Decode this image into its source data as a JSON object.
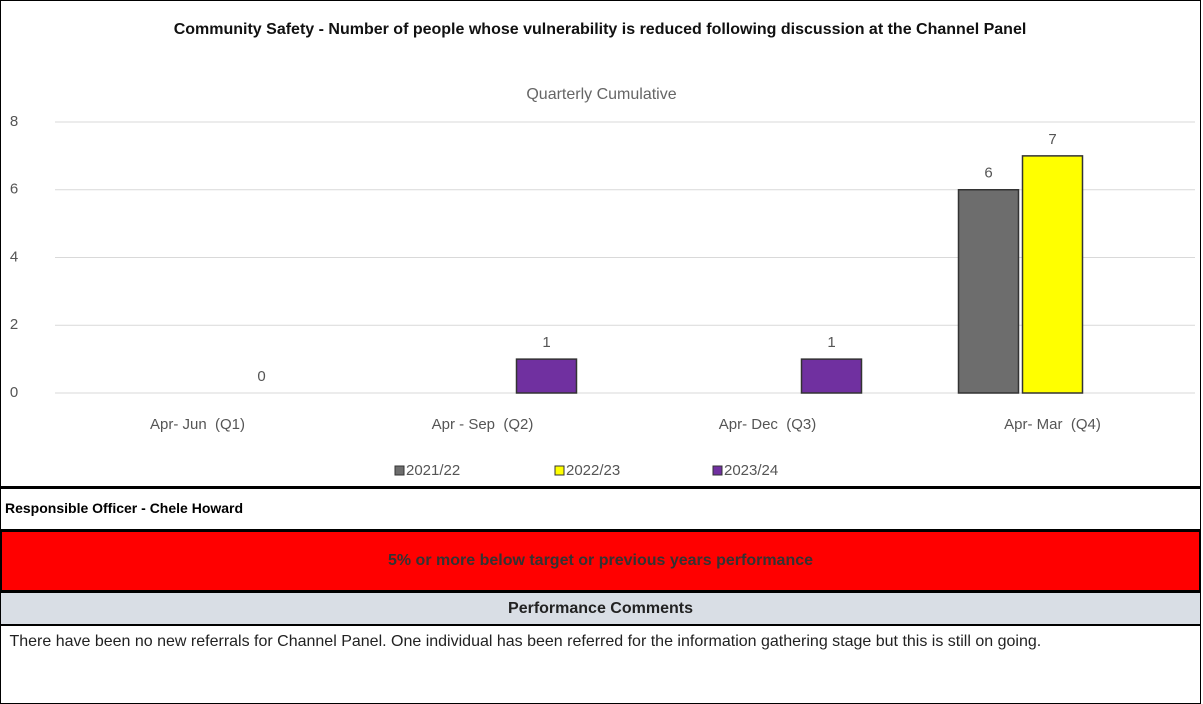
{
  "chart_data": {
    "type": "bar",
    "title": "Community Safety - Number of people whose vulnerability is reduced following discussion at the Channel Panel",
    "subtitle": "Quarterly Cumulative",
    "categories": [
      "Apr- Jun  (Q1)",
      "Apr - Sep  (Q2)",
      "Apr- Dec  (Q3)",
      "Apr- Mar  (Q4)"
    ],
    "series": [
      {
        "name": "2021/22",
        "color": "#6d6d6d",
        "values": [
          null,
          null,
          null,
          6
        ]
      },
      {
        "name": "2022/23",
        "color": "#ffff00",
        "values": [
          null,
          null,
          null,
          7
        ]
      },
      {
        "name": "2023/24",
        "color": "#7030a0",
        "values": [
          0,
          1,
          1,
          null
        ]
      }
    ],
    "ylim": [
      0,
      8
    ],
    "yticks": [
      0,
      2,
      4,
      6,
      8
    ],
    "grid": true,
    "legend": "bottom"
  },
  "officer": "Responsible Officer - Chele Howard",
  "status": "5% or more below target or previous years performance",
  "comments_header": "Performance Comments",
  "comments": " There have been no new referrals for Channel Panel. One individual has been referred for the information gathering stage but this is still on going."
}
